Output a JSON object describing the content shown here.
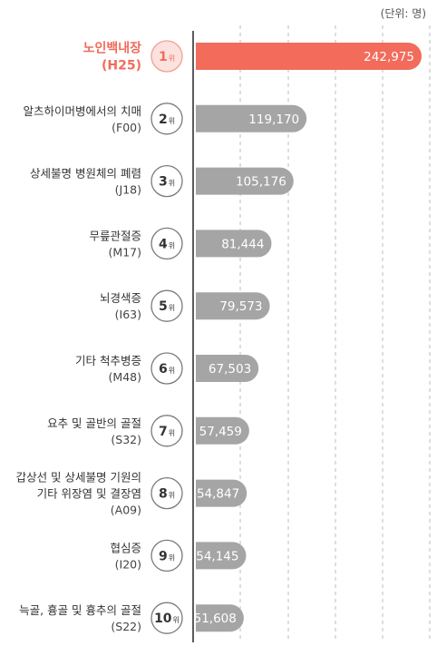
{
  "chart_data": {
    "type": "bar",
    "orientation": "horizontal",
    "unit_label": "(단위: 명)",
    "grid": "dashed vertical",
    "highlight_color": "#f26b5b",
    "bar_color": "#a5a5a5",
    "rank_suffix": "위",
    "categories": [
      {
        "rank": "1",
        "name": "노인백내장",
        "code": "(H25)",
        "value": 242975,
        "label": "242,975",
        "highlight": true
      },
      {
        "rank": "2",
        "name": "알츠하이머병에서의 치매",
        "code": "(F00)",
        "value": 119170,
        "label": "119,170"
      },
      {
        "rank": "3",
        "name": "상세불명 병원체의 폐렴",
        "code": "(J18)",
        "value": 105176,
        "label": "105,176"
      },
      {
        "rank": "4",
        "name": "무릎관절증",
        "code": "(M17)",
        "value": 81444,
        "label": "81,444"
      },
      {
        "rank": "5",
        "name": "뇌경색증",
        "code": "(I63)",
        "value": 79573,
        "label": "79,573"
      },
      {
        "rank": "6",
        "name": "기타 척추병증",
        "code": "(M48)",
        "value": 67503,
        "label": "67,503"
      },
      {
        "rank": "7",
        "name": "요추 및 골반의 골절",
        "code": "(S32)",
        "value": 57459,
        "label": "57,459"
      },
      {
        "rank": "8",
        "name": "갑상선 및 상세불명 기원의\n기타 위장염 및 결장염",
        "code": "(A09)",
        "value": 54847,
        "label": "54,847"
      },
      {
        "rank": "9",
        "name": "협심증",
        "code": "(I20)",
        "value": 54145,
        "label": "54,145"
      },
      {
        "rank": "10",
        "name": "늑골, 흉골 및 흉추의 골절",
        "code": "(S22)",
        "value": 51608,
        "label": "51,608"
      }
    ]
  }
}
